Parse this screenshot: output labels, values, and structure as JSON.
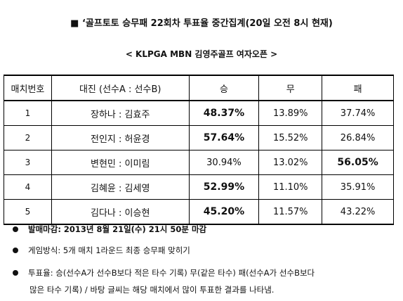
{
  "header": {
    "title": "■ ‘골프토토 승무패 22회차 투표율 중간집계(20일 오전 8시 현재)",
    "subtitle": "< KLPGA MBN 김영주골프 여자오픈 >"
  },
  "table": {
    "columns": [
      "매치번호",
      "대진 (선수A : 선수B)",
      "승",
      "무",
      "패"
    ],
    "rows": [
      {
        "num": "1",
        "players": "장하나 : 김효주",
        "win": "48.37%",
        "draw": "13.89%",
        "loss": "37.74%",
        "bold": "win"
      },
      {
        "num": "2",
        "players": "전인지 : 허윤경",
        "win": "57.64%",
        "draw": "15.52%",
        "loss": "26.84%",
        "bold": "win"
      },
      {
        "num": "3",
        "players": "변현민 : 이미림",
        "win": "30.94%",
        "draw": "13.02%",
        "loss": "56.05%",
        "bold": "loss"
      },
      {
        "num": "4",
        "players": "김혜윤 : 김세영",
        "win": "52.99%",
        "draw": "11.10%",
        "loss": "35.91%",
        "bold": "win"
      },
      {
        "num": "5",
        "players": "김다나 : 이승현",
        "win": "45.20%",
        "draw": "11.57%",
        "loss": "43.22%",
        "bold": "win"
      }
    ]
  },
  "notes": {
    "deadline": "발매마감: 2013년 8월 21일(수) 21시 50분 마감",
    "method": "게임방식: 5개 매치 1라운드 최종 승무패 맞히기",
    "rate_line1": "투표율: 승(선수A가 선수B보다 적은 타수 기록) 무(같은 타수) 패(선수A가 선수B보다",
    "rate_line2": "많은 타수 기록) / 바탕 글씨는 해당 매치에서 많이 투표한 결과를 나타냄."
  }
}
